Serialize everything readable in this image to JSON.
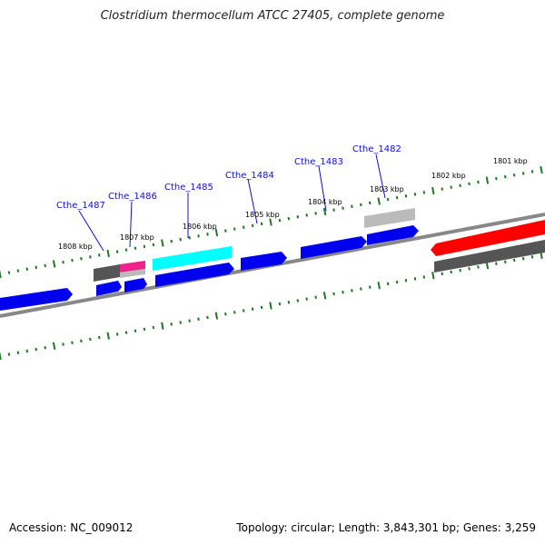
{
  "title": "Clostridium thermocellum ATCC 27405, complete genome",
  "footer": {
    "accession": "Accession: NC_009012",
    "summary": "Topology: circular; Length: 3,843,301 bp; Genes: 3,259"
  },
  "kbp_labels": [
    "1808 kbp",
    "1807 kbp",
    "1806 kbp",
    "1805 kbp",
    "1804 kbp",
    "1803 kbp",
    "1802 kbp",
    "1801 kbp"
  ],
  "gene_labels": [
    "Cthe_1487",
    "Cthe_1486",
    "Cthe_1485",
    "Cthe_1484",
    "Cthe_1483",
    "Cthe_1482"
  ],
  "colors": {
    "cds": "#0000ee",
    "highlight_cyan": "#00ffff",
    "highlight_magenta": "#ee2288",
    "highlight_red": "#ff0000",
    "gray_dark": "#555555",
    "gray_light": "#bbbbbb",
    "backbone": "#888888",
    "ticks": "#227722"
  }
}
